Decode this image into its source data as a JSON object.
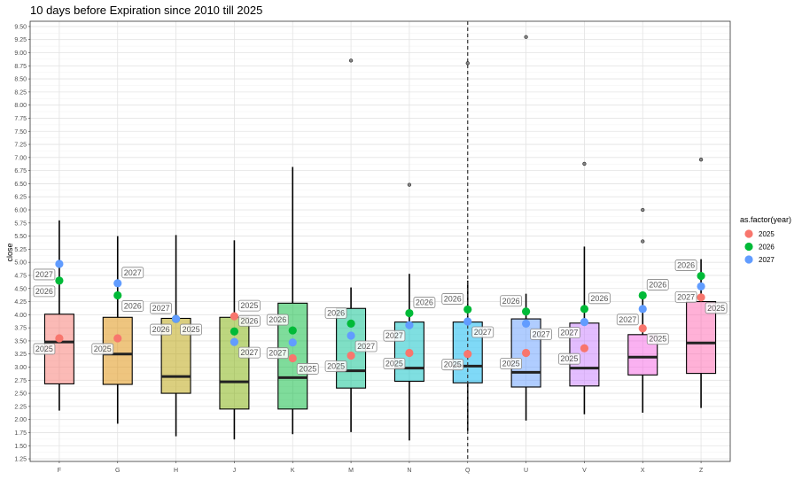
{
  "chart_data": {
    "type": "boxplot",
    "title": "10 days before Expiration since 2010 till 2025",
    "ylabel": "close",
    "xlabel": "",
    "ylim": [
      1.2,
      9.6
    ],
    "yticks": [
      "1.25",
      "1.50",
      "1.75",
      "2.00",
      "2.25",
      "2.50",
      "2.75",
      "3.00",
      "3.25",
      "3.50",
      "3.75",
      "4.00",
      "4.25",
      "4.50",
      "4.75",
      "5.00",
      "5.25",
      "5.50",
      "5.75",
      "6.00",
      "6.25",
      "6.50",
      "6.75",
      "7.00",
      "7.25",
      "7.50",
      "7.75",
      "8.00",
      "8.25",
      "8.50",
      "8.75",
      "9.00",
      "9.25",
      "9.50"
    ],
    "grid": true,
    "vline_category": "Q",
    "categories": [
      "F",
      "G",
      "H",
      "J",
      "K",
      "M",
      "N",
      "Q",
      "U",
      "V",
      "X",
      "Z"
    ],
    "box_colors": [
      "#F8766D",
      "#DE8C00",
      "#B79F00",
      "#7CAE00",
      "#00BA38",
      "#00C08B",
      "#00BFC4",
      "#00B4F0",
      "#619CFF",
      "#C77CFF",
      "#F564E3",
      "#FF64B0"
    ],
    "boxes": [
      {
        "cat": "F",
        "low": 2.17,
        "q1": 2.68,
        "median": 3.48,
        "q3": 4.01,
        "high": 5.8,
        "outliers": []
      },
      {
        "cat": "G",
        "low": 1.92,
        "q1": 2.67,
        "median": 3.25,
        "q3": 3.95,
        "high": 5.5,
        "outliers": []
      },
      {
        "cat": "H",
        "low": 1.68,
        "q1": 2.5,
        "median": 2.82,
        "q3": 3.93,
        "high": 5.52,
        "outliers": []
      },
      {
        "cat": "J",
        "low": 1.62,
        "q1": 2.2,
        "median": 2.72,
        "q3": 3.95,
        "high": 5.42,
        "outliers": []
      },
      {
        "cat": "K",
        "low": 1.72,
        "q1": 2.2,
        "median": 2.8,
        "q3": 4.22,
        "high": 6.82,
        "outliers": []
      },
      {
        "cat": "M",
        "low": 1.76,
        "q1": 2.6,
        "median": 2.93,
        "q3": 4.12,
        "high": 4.52,
        "outliers": [
          8.85
        ]
      },
      {
        "cat": "N",
        "low": 1.6,
        "q1": 2.73,
        "median": 2.98,
        "q3": 3.86,
        "high": 4.78,
        "outliers": [
          6.48
        ]
      },
      {
        "cat": "Q",
        "low": 1.78,
        "q1": 2.7,
        "median": 3.02,
        "q3": 3.86,
        "high": 4.65,
        "outliers": [
          8.8
        ]
      },
      {
        "cat": "U",
        "low": 1.98,
        "q1": 2.62,
        "median": 2.9,
        "q3": 3.92,
        "high": 4.4,
        "outliers": [
          9.3
        ]
      },
      {
        "cat": "V",
        "low": 2.1,
        "q1": 2.64,
        "median": 2.98,
        "q3": 3.84,
        "high": 5.3,
        "outliers": [
          6.88
        ]
      },
      {
        "cat": "X",
        "low": 2.13,
        "q1": 2.85,
        "median": 3.19,
        "q3": 3.62,
        "high": 4.4,
        "outliers": [
          5.4,
          6.0
        ]
      },
      {
        "cat": "Z",
        "low": 2.22,
        "q1": 2.88,
        "median": 3.46,
        "q3": 4.25,
        "high": 5.06,
        "outliers": [
          6.96
        ]
      }
    ],
    "legend": {
      "title": "as.factor(year)",
      "position": "right",
      "items": [
        {
          "label": "2025",
          "color": "#F8766D"
        },
        {
          "label": "2026",
          "color": "#00BA38"
        },
        {
          "label": "2027",
          "color": "#619CFF"
        }
      ]
    },
    "points": [
      {
        "cat": "F",
        "year": "2025",
        "y": 3.55,
        "label": "2025",
        "label_pos": "bl"
      },
      {
        "cat": "F",
        "year": "2026",
        "y": 4.65,
        "label": "2026",
        "label_pos": "bl"
      },
      {
        "cat": "F",
        "year": "2027",
        "y": 4.97,
        "label": "2027",
        "label_pos": "bl"
      },
      {
        "cat": "G",
        "year": "2025",
        "y": 3.55,
        "label": "2025",
        "label_pos": "bl"
      },
      {
        "cat": "G",
        "year": "2026",
        "y": 4.37,
        "label": "2026",
        "label_pos": "br"
      },
      {
        "cat": "G",
        "year": "2027",
        "y": 4.6,
        "label": "2027",
        "label_pos": "tr"
      },
      {
        "cat": "H",
        "year": "2025",
        "y": 3.92,
        "label": "2025",
        "label_pos": "br"
      },
      {
        "cat": "H",
        "year": "2026",
        "y": 3.92,
        "label": "2026",
        "label_pos": "bl"
      },
      {
        "cat": "H",
        "year": "2027",
        "y": 3.92,
        "label": "2027",
        "label_pos": "tl"
      },
      {
        "cat": "J",
        "year": "2025",
        "y": 3.97,
        "label": "2025",
        "label_pos": "tr"
      },
      {
        "cat": "J",
        "year": "2026",
        "y": 3.68,
        "label": "2026",
        "label_pos": "tr"
      },
      {
        "cat": "J",
        "year": "2027",
        "y": 3.48,
        "label": "2027",
        "label_pos": "br"
      },
      {
        "cat": "K",
        "year": "2025",
        "y": 3.17,
        "label": "2025",
        "label_pos": "br"
      },
      {
        "cat": "K",
        "year": "2026",
        "y": 3.7,
        "label": "2026",
        "label_pos": "tl"
      },
      {
        "cat": "K",
        "year": "2027",
        "y": 3.47,
        "label": "2027",
        "label_pos": "bl"
      },
      {
        "cat": "M",
        "year": "2025",
        "y": 3.22,
        "label": "2025",
        "label_pos": "bl"
      },
      {
        "cat": "M",
        "year": "2026",
        "y": 3.83,
        "label": "2026",
        "label_pos": "tl"
      },
      {
        "cat": "M",
        "year": "2027",
        "y": 3.6,
        "label": "2027",
        "label_pos": "br"
      },
      {
        "cat": "N",
        "year": "2025",
        "y": 3.27,
        "label": "2025",
        "label_pos": "bl"
      },
      {
        "cat": "N",
        "year": "2026",
        "y": 4.03,
        "label": "2026",
        "label_pos": "tr"
      },
      {
        "cat": "N",
        "year": "2027",
        "y": 3.8,
        "label": "2027",
        "label_pos": "bl"
      },
      {
        "cat": "Q",
        "year": "2025",
        "y": 3.25,
        "label": "2025",
        "label_pos": "bl"
      },
      {
        "cat": "Q",
        "year": "2026",
        "y": 4.1,
        "label": "2026",
        "label_pos": "tl"
      },
      {
        "cat": "Q",
        "year": "2027",
        "y": 3.87,
        "label": "2027",
        "label_pos": "br"
      },
      {
        "cat": "U",
        "year": "2025",
        "y": 3.27,
        "label": "2025",
        "label_pos": "bl"
      },
      {
        "cat": "U",
        "year": "2026",
        "y": 4.06,
        "label": "2026",
        "label_pos": "tl"
      },
      {
        "cat": "U",
        "year": "2027",
        "y": 3.83,
        "label": "2027",
        "label_pos": "br"
      },
      {
        "cat": "V",
        "year": "2025",
        "y": 3.36,
        "label": "2025",
        "label_pos": "bl"
      },
      {
        "cat": "V",
        "year": "2026",
        "y": 4.11,
        "label": "2026",
        "label_pos": "tr"
      },
      {
        "cat": "V",
        "year": "2027",
        "y": 3.86,
        "label": "2027",
        "label_pos": "bl"
      },
      {
        "cat": "X",
        "year": "2025",
        "y": 3.74,
        "label": "2025",
        "label_pos": "br"
      },
      {
        "cat": "X",
        "year": "2026",
        "y": 4.37,
        "label": "2026",
        "label_pos": "tr"
      },
      {
        "cat": "X",
        "year": "2027",
        "y": 4.11,
        "label": "2027",
        "label_pos": "bl"
      },
      {
        "cat": "Z",
        "year": "2025",
        "y": 4.33,
        "label": "2025",
        "label_pos": "br"
      },
      {
        "cat": "Z",
        "year": "2026",
        "y": 4.74,
        "label": "2026",
        "label_pos": "tl"
      },
      {
        "cat": "Z",
        "year": "2027",
        "y": 4.54,
        "label": "2027",
        "label_pos": "bl"
      }
    ]
  }
}
